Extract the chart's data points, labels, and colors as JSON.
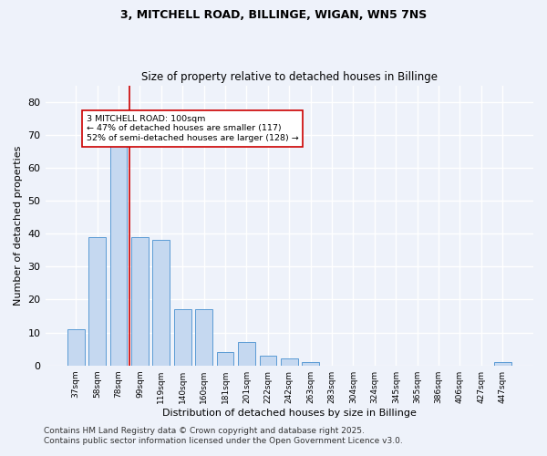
{
  "title_line1": "3, MITCHELL ROAD, BILLINGE, WIGAN, WN5 7NS",
  "title_line2": "Size of property relative to detached houses in Billinge",
  "xlabel": "Distribution of detached houses by size in Billinge",
  "ylabel": "Number of detached properties",
  "categories": [
    "37sqm",
    "58sqm",
    "78sqm",
    "99sqm",
    "119sqm",
    "140sqm",
    "160sqm",
    "181sqm",
    "201sqm",
    "222sqm",
    "242sqm",
    "263sqm",
    "283sqm",
    "304sqm",
    "324sqm",
    "345sqm",
    "365sqm",
    "386sqm",
    "406sqm",
    "427sqm",
    "447sqm"
  ],
  "values": [
    11,
    39,
    67,
    39,
    38,
    17,
    17,
    4,
    7,
    3,
    2,
    1,
    0,
    0,
    0,
    0,
    0,
    0,
    0,
    0,
    1
  ],
  "bar_color": "#c5d8f0",
  "bar_edge_color": "#5b9bd5",
  "ylim": [
    0,
    85
  ],
  "yticks": [
    0,
    10,
    20,
    30,
    40,
    50,
    60,
    70,
    80
  ],
  "red_line_index": 2.5,
  "annotation_text": "3 MITCHELL ROAD: 100sqm\n← 47% of detached houses are smaller (117)\n52% of semi-detached houses are larger (128) →",
  "annotation_box_color": "#ffffff",
  "annotation_box_edge_color": "#cc0000",
  "bg_color": "#eef2fa",
  "grid_color": "#ffffff",
  "footer_line1": "Contains HM Land Registry data © Crown copyright and database right 2025.",
  "footer_line2": "Contains public sector information licensed under the Open Government Licence v3.0.",
  "title_fontsize": 9,
  "subtitle_fontsize": 8.5,
  "footer_fontsize": 6.5
}
